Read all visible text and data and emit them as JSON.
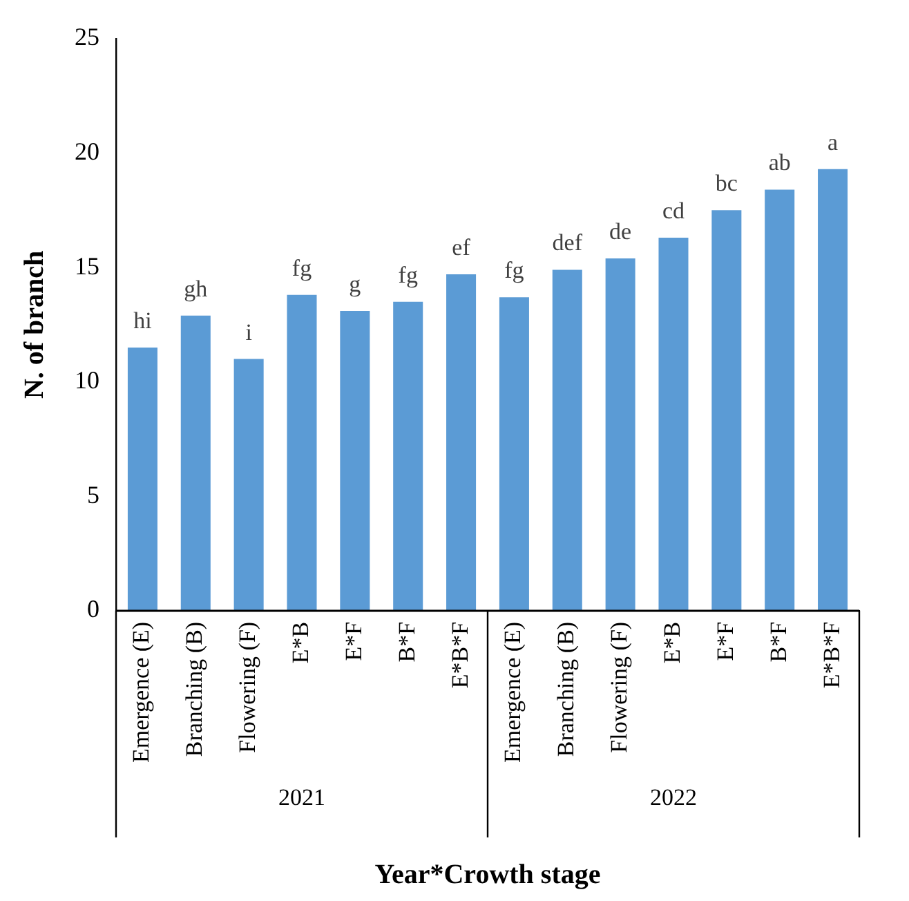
{
  "chart_data": {
    "type": "bar",
    "ylabel": "N. of branch",
    "xlabel": "Year*Crowth stage",
    "categories": [
      "Emergence (E)",
      "Branching (B)",
      "Flowering (F)",
      "E*B",
      "E*F",
      "B*F",
      "E*B*F",
      "Emergence (E)",
      "Branching (B)",
      "Flowering (F)",
      "E*B",
      "E*F",
      "B*F",
      "E*B*F"
    ],
    "values": [
      11.5,
      12.9,
      11.0,
      13.8,
      13.1,
      13.5,
      14.7,
      13.7,
      14.9,
      15.4,
      16.3,
      17.5,
      18.4,
      19.3
    ],
    "value_labels": [
      "hi",
      "gh",
      "i",
      "fg",
      "g",
      "fg",
      "ef",
      "fg",
      "def",
      "de",
      "cd",
      "bc",
      "ab",
      "a"
    ],
    "color": "#5b9bd5",
    "annotations": [
      "2021",
      "2022"
    ],
    "ylim": [
      0,
      25
    ],
    "yticks": [
      0,
      5,
      10,
      15,
      20,
      25
    ],
    "grid": false,
    "legend": false
  }
}
